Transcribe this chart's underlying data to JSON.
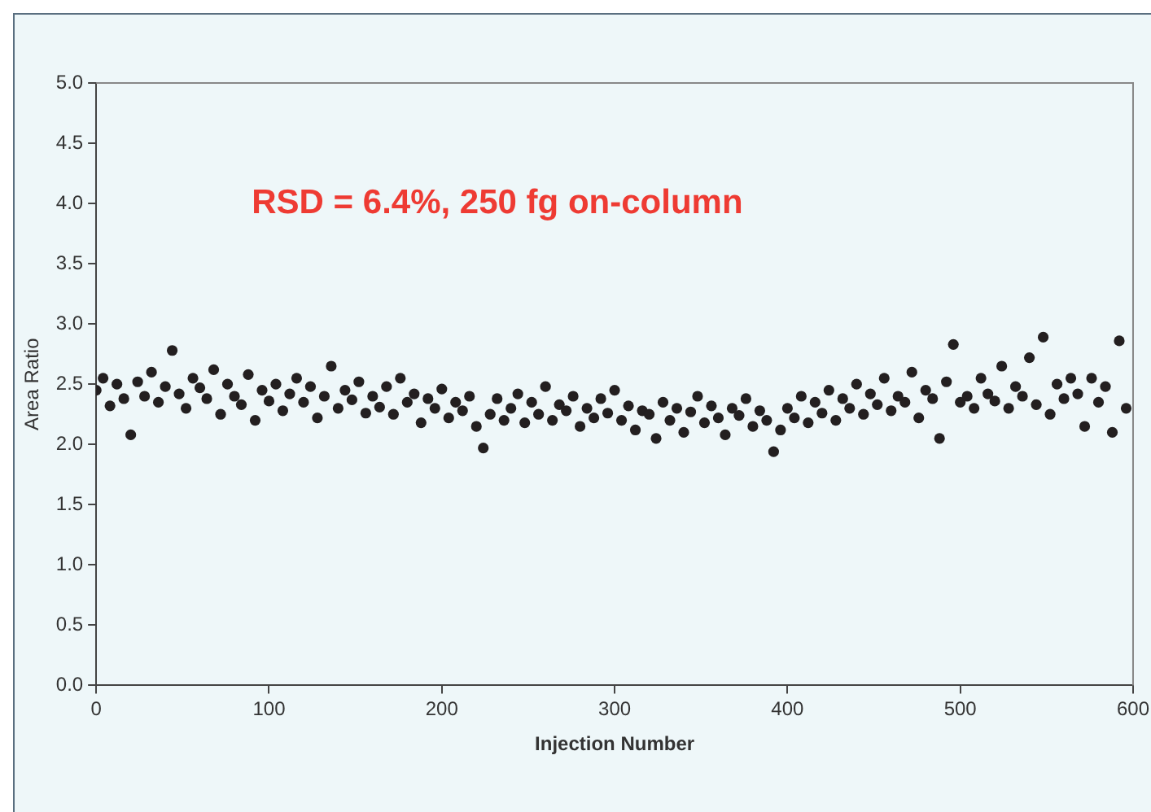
{
  "chart_data": {
    "type": "scatter",
    "xlabel": "Injection Number",
    "ylabel": "Area Ratio",
    "annotations": [
      "RSD = 6.4%, 250 fg on-column"
    ],
    "marker": "circle",
    "grid": false,
    "legend": false,
    "xlim": [
      0,
      600
    ],
    "xticks": [
      0,
      100,
      200,
      300,
      400,
      500,
      600
    ],
    "ylim": [
      0,
      5
    ],
    "yticks": [
      {
        "value": 0,
        "label": "0.0"
      },
      0.5,
      {
        "value": 1,
        "label": "1.0"
      },
      1.5,
      {
        "value": 2,
        "label": "2.0"
      },
      2.5,
      {
        "value": 3,
        "label": "3.0"
      },
      3.5,
      {
        "value": 4,
        "label": "4.0"
      },
      4.5,
      {
        "value": 5,
        "label": "5.0"
      }
    ],
    "series": [
      {
        "color": "#231f20",
        "x": [
          0,
          4,
          8,
          12,
          16,
          20,
          24,
          28,
          32,
          36,
          40,
          44,
          48,
          52,
          56,
          60,
          64,
          68,
          72,
          76,
          80,
          84,
          88,
          92,
          96,
          100,
          104,
          108,
          112,
          116,
          120,
          124,
          128,
          132,
          136,
          140,
          144,
          148,
          152,
          156,
          160,
          164,
          168,
          172,
          176,
          180,
          184,
          188,
          192,
          196,
          200,
          204,
          208,
          212,
          216,
          220,
          224,
          228,
          232,
          236,
          240,
          244,
          248,
          252,
          256,
          260,
          264,
          268,
          272,
          276,
          280,
          284,
          288,
          292,
          296,
          300,
          304,
          308,
          312,
          316,
          320,
          324,
          328,
          332,
          336,
          340,
          344,
          348,
          352,
          356,
          360,
          364,
          368,
          372,
          376,
          380,
          384,
          388,
          392,
          396,
          400,
          404,
          408,
          412,
          416,
          420,
          424,
          428,
          432,
          436,
          440,
          444,
          448,
          452,
          456,
          460,
          464,
          468,
          472,
          476,
          480,
          484,
          488,
          492,
          496,
          500,
          504,
          508,
          512,
          516,
          520,
          524,
          528,
          532,
          536,
          540,
          544,
          548,
          552,
          556,
          560,
          564,
          568,
          572,
          576,
          580,
          584,
          588,
          592,
          596
        ],
        "values": [
          2.45,
          2.55,
          2.32,
          2.5,
          2.38,
          2.08,
          2.52,
          2.4,
          2.6,
          2.35,
          2.48,
          2.78,
          2.42,
          2.3,
          2.55,
          2.47,
          2.38,
          2.62,
          2.25,
          2.5,
          2.4,
          2.33,
          2.58,
          2.2,
          2.45,
          2.36,
          2.5,
          2.28,
          2.42,
          2.55,
          2.35,
          2.48,
          2.22,
          2.4,
          2.65,
          2.3,
          2.45,
          2.37,
          2.52,
          2.26,
          2.4,
          2.31,
          2.48,
          2.25,
          2.55,
          2.35,
          2.42,
          2.18,
          2.38,
          2.3,
          2.46,
          2.22,
          2.35,
          2.28,
          2.4,
          2.15,
          1.97,
          2.25,
          2.38,
          2.2,
          2.3,
          2.42,
          2.18,
          2.35,
          2.25,
          2.48,
          2.2,
          2.33,
          2.28,
          2.4,
          2.15,
          2.3,
          2.22,
          2.38,
          2.26,
          2.45,
          2.2,
          2.32,
          2.12,
          2.28,
          2.25,
          2.05,
          2.35,
          2.2,
          2.3,
          2.1,
          2.27,
          2.4,
          2.18,
          2.32,
          2.22,
          2.08,
          2.3,
          2.24,
          2.38,
          2.15,
          2.28,
          2.2,
          1.94,
          2.12,
          2.3,
          2.22,
          2.4,
          2.18,
          2.35,
          2.26,
          2.45,
          2.2,
          2.38,
          2.3,
          2.5,
          2.25,
          2.42,
          2.33,
          2.55,
          2.28,
          2.4,
          2.35,
          2.6,
          2.22,
          2.45,
          2.38,
          2.05,
          2.52,
          2.83,
          2.35,
          2.4,
          2.3,
          2.55,
          2.42,
          2.36,
          2.65,
          2.3,
          2.48,
          2.4,
          2.72,
          2.33,
          2.89,
          2.25,
          2.5,
          2.38,
          2.55,
          2.42,
          2.15,
          2.55,
          2.35,
          2.48,
          2.1,
          2.86,
          2.3
        ]
      }
    ]
  }
}
